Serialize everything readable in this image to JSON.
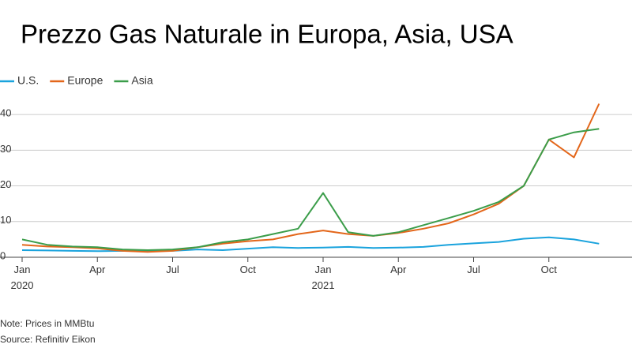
{
  "chart_data": {
    "type": "line",
    "title": "Prezzo Gas Naturale in Europa, Asia, USA",
    "notes": [
      "Note: Prices in MMBtu",
      "Source: Refinitiv Eikon"
    ],
    "x": [
      "2020-01",
      "2020-02",
      "2020-03",
      "2020-04",
      "2020-05",
      "2020-06",
      "2020-07",
      "2020-08",
      "2020-09",
      "2020-10",
      "2020-11",
      "2020-12",
      "2021-01",
      "2021-02",
      "2021-03",
      "2021-04",
      "2021-05",
      "2021-06",
      "2021-07",
      "2021-08",
      "2021-09",
      "2021-10",
      "2021-11",
      "2021-12"
    ],
    "series": [
      {
        "name": "U.S.",
        "color": "#1aa3dd",
        "values": [
          2.0,
          1.9,
          1.8,
          1.7,
          1.8,
          1.7,
          1.8,
          2.2,
          2.0,
          2.4,
          2.8,
          2.6,
          2.7,
          2.9,
          2.6,
          2.7,
          2.9,
          3.5,
          3.9,
          4.3,
          5.2,
          5.6,
          5.0,
          3.8
        ]
      },
      {
        "name": "Europe",
        "color": "#e3661a",
        "values": [
          3.5,
          3.0,
          2.8,
          2.5,
          1.8,
          1.5,
          1.8,
          2.8,
          3.8,
          4.5,
          5.0,
          6.5,
          7.5,
          6.5,
          6.0,
          6.8,
          8.0,
          9.5,
          12.0,
          15.0,
          20.0,
          33.0,
          28.0,
          43.0
        ]
      },
      {
        "name": "Asia",
        "color": "#3b9d4a",
        "values": [
          5.0,
          3.5,
          3.0,
          2.8,
          2.2,
          2.0,
          2.2,
          2.8,
          4.2,
          5.0,
          6.5,
          8.0,
          18.0,
          7.0,
          6.0,
          7.0,
          9.0,
          11.0,
          13.0,
          15.5,
          20.0,
          33.0,
          35.0,
          36.0
        ]
      }
    ],
    "xlim": [
      "2020-01",
      "2022-01"
    ],
    "xticks": [
      {
        "value": "2020-01",
        "label": "Jan 2020"
      },
      {
        "value": "2020-04",
        "label": "Apr"
      },
      {
        "value": "2020-07",
        "label": "Jul"
      },
      {
        "value": "2020-10",
        "label": "Oct"
      },
      {
        "value": "2021-01",
        "label": "Jan 2021"
      },
      {
        "value": "2021-04",
        "label": "Apr"
      },
      {
        "value": "2021-07",
        "label": "Jul"
      },
      {
        "value": "2021-10",
        "label": "Oct"
      }
    ],
    "ylim": [
      0,
      44
    ],
    "yticks": [
      0,
      10,
      20,
      30,
      40
    ],
    "grid": true,
    "legend": "top-left"
  }
}
